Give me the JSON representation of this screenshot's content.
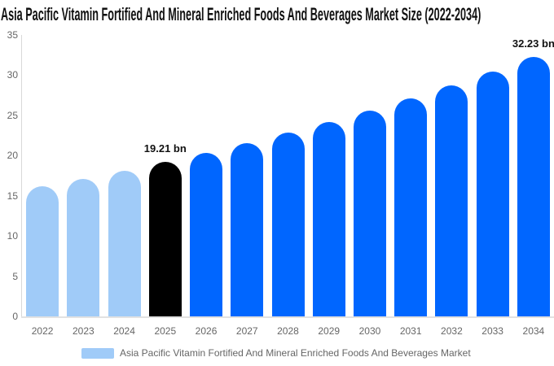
{
  "title": "Asia Pacific Vitamin Fortified And Mineral Enriched Foods And Beverages Market Size (2022-2034)",
  "legend": {
    "label": "Asia Pacific Vitamin Fortified And Mineral Enriched Foods And Beverages Market",
    "swatch_color": "#a0cbf8"
  },
  "chart_data": {
    "type": "bar",
    "title": "Asia Pacific Vitamin Fortified And Mineral Enriched Foods And Beverages Market Size (2022-2034)",
    "unit": "bn",
    "categories": [
      "2022",
      "2023",
      "2024",
      "2025",
      "2026",
      "2027",
      "2028",
      "2029",
      "2030",
      "2031",
      "2032",
      "2033",
      "2034"
    ],
    "values": [
      16.17,
      17.12,
      18.14,
      19.21,
      20.35,
      21.55,
      22.83,
      24.18,
      25.61,
      27.13,
      28.73,
      30.43,
      32.23
    ],
    "ylim": [
      0,
      35
    ],
    "y_ticks": [
      0,
      5,
      10,
      15,
      20,
      25,
      30,
      35
    ],
    "grid": "off",
    "legend_position": "bottom",
    "point_labels": [
      {
        "category": "2025",
        "text": "19.21 bn"
      },
      {
        "category": "2034",
        "text": "32.23 bn"
      }
    ],
    "bar_color_keys": [
      "historical",
      "historical",
      "historical",
      "base_year",
      "forecast",
      "forecast",
      "forecast",
      "forecast",
      "forecast",
      "forecast",
      "forecast",
      "forecast",
      "forecast"
    ],
    "colors": {
      "historical": "#a0cbf8",
      "base_year": "#000000",
      "forecast": "#0066ff",
      "axis_line": "#d8d8d8",
      "baseline": "#e2e2e2",
      "axis_text": "#666666",
      "label_text": "#111111"
    }
  }
}
